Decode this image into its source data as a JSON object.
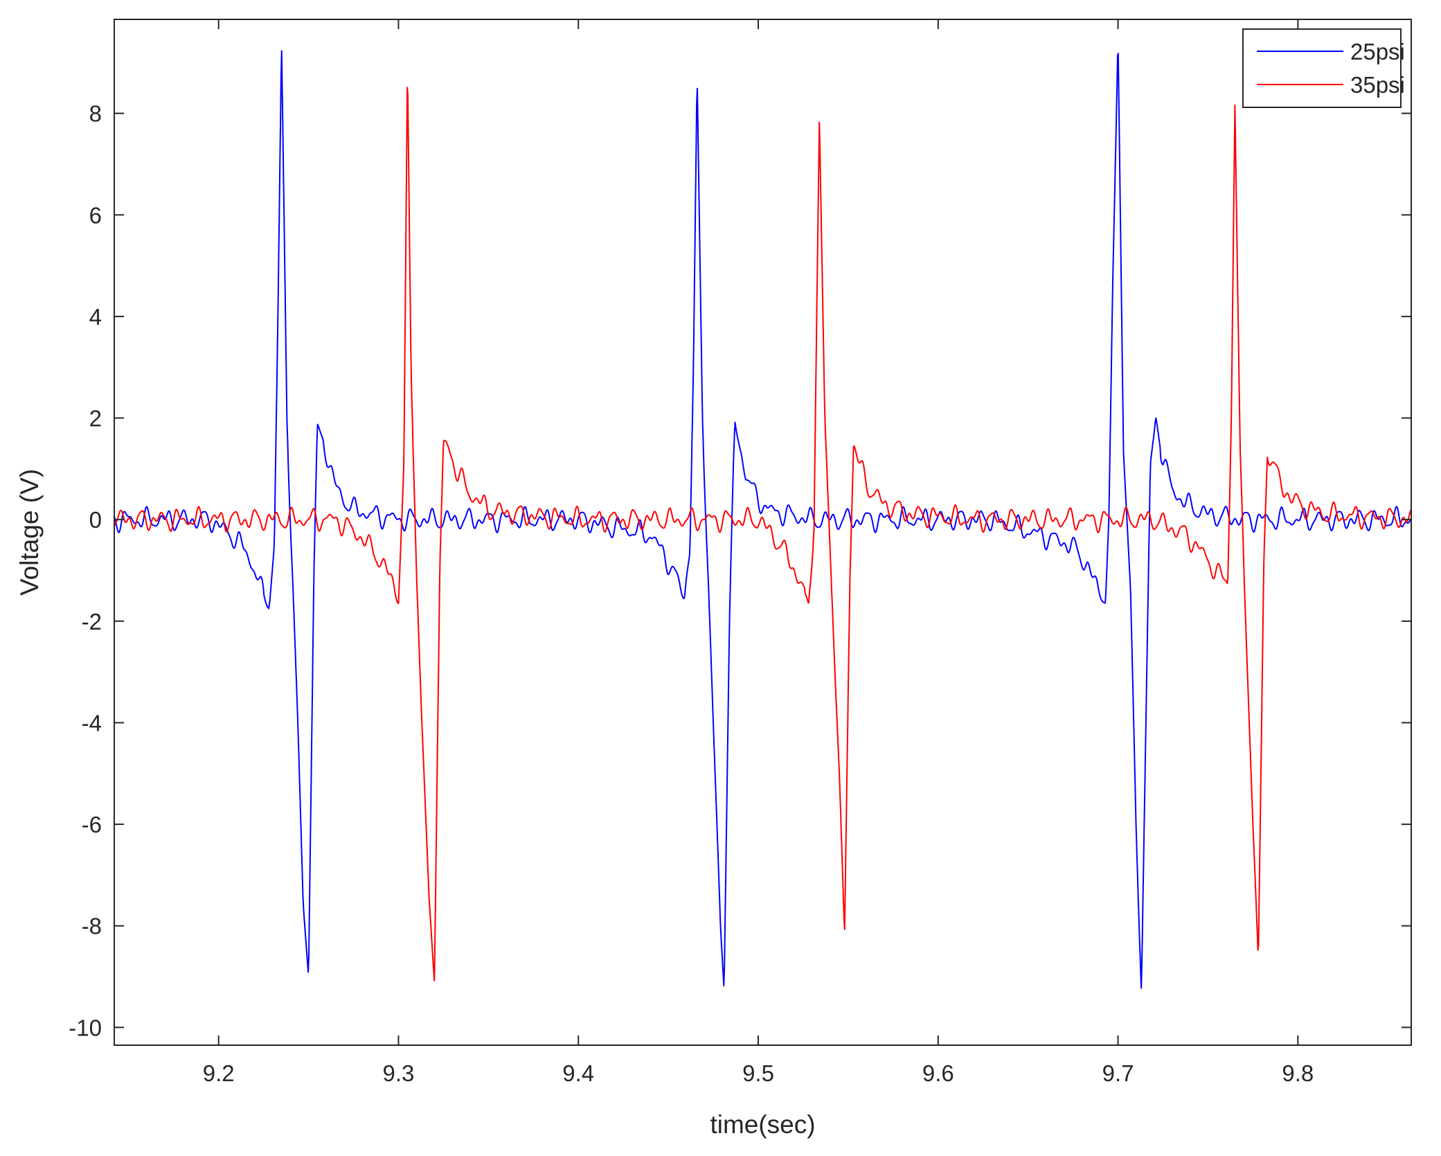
{
  "chart_data": {
    "type": "line",
    "title": "",
    "xlabel": "time(sec)",
    "ylabel": "Voltage (V)",
    "xlim": [
      9.142,
      9.863
    ],
    "ylim": [
      -10.35,
      9.85
    ],
    "xticks": [
      9.2,
      9.3,
      9.4,
      9.5,
      9.6,
      9.7,
      9.8
    ],
    "xtick_labels": [
      "9.2",
      "9.3",
      "9.4",
      "9.5",
      "9.6",
      "9.7",
      "9.8"
    ],
    "yticks": [
      -10,
      -8,
      -6,
      -4,
      -2,
      0,
      2,
      4,
      6,
      8
    ],
    "ytick_labels": [
      "-10",
      "-8",
      "-6",
      "-4",
      "-2",
      "0",
      "2",
      "4",
      "6",
      "8"
    ],
    "grid": false,
    "legend_position": "top-right",
    "series": [
      {
        "name": "25psi",
        "color": "#0000ff",
        "x": [
          9.142,
          9.195,
          9.207,
          9.215,
          9.22,
          9.225,
          9.228,
          9.231,
          9.233,
          9.235,
          9.238,
          9.241,
          9.244,
          9.247,
          9.25,
          9.253,
          9.255,
          9.258,
          9.262,
          9.267,
          9.275,
          9.285,
          9.3,
          9.35,
          9.4,
          9.44,
          9.448,
          9.455,
          9.459,
          9.462,
          9.464,
          9.466,
          9.469,
          9.472,
          9.476,
          9.479,
          9.481,
          9.484,
          9.487,
          9.49,
          9.493,
          9.498,
          9.505,
          9.515,
          9.53,
          9.58,
          9.63,
          9.674,
          9.683,
          9.689,
          9.693,
          9.695,
          9.697,
          9.7,
          9.703,
          9.707,
          9.71,
          9.713,
          9.716,
          9.718,
          9.721,
          9.725,
          9.73,
          9.738,
          9.75,
          9.77,
          9.82,
          9.863
        ],
        "y": [
          0.0,
          0.0,
          -0.3,
          -0.6,
          -1.0,
          -1.5,
          -1.7,
          -0.5,
          4.0,
          9.4,
          2.0,
          -1.0,
          -4.0,
          -7.5,
          -9.0,
          -1.0,
          1.8,
          1.6,
          1.0,
          0.5,
          0.2,
          0.1,
          0.0,
          0.0,
          0.0,
          -0.3,
          -0.7,
          -1.2,
          -1.5,
          -0.5,
          3.0,
          8.7,
          2.0,
          -1.0,
          -5.0,
          -8.0,
          -9.2,
          -2.0,
          1.9,
          1.4,
          0.9,
          0.5,
          0.2,
          0.1,
          0.0,
          0.0,
          0.0,
          -0.5,
          -0.9,
          -1.4,
          -1.5,
          0.0,
          4.5,
          9.5,
          1.5,
          -1.5,
          -6.0,
          -9.3,
          -3.0,
          1.0,
          2.0,
          1.2,
          0.6,
          0.3,
          0.1,
          0.0,
          0.0,
          0.0
        ]
      },
      {
        "name": "35psi",
        "color": "#ff0000",
        "x": [
          9.142,
          9.265,
          9.278,
          9.288,
          9.295,
          9.3,
          9.303,
          9.305,
          9.307,
          9.31,
          9.313,
          9.317,
          9.32,
          9.323,
          9.325,
          9.328,
          9.333,
          9.34,
          9.35,
          9.365,
          9.4,
          9.5,
          9.508,
          9.516,
          9.523,
          9.528,
          9.531,
          9.534,
          9.537,
          9.541,
          9.545,
          9.548,
          9.551,
          9.553,
          9.557,
          9.562,
          9.57,
          9.585,
          9.62,
          9.72,
          9.738,
          9.748,
          9.756,
          9.761,
          9.763,
          9.765,
          9.768,
          9.771,
          9.775,
          9.778,
          9.781,
          9.783,
          9.787,
          9.792,
          9.8,
          9.815,
          9.863
        ],
        "y": [
          0.0,
          0.0,
          -0.3,
          -0.7,
          -1.1,
          -1.5,
          1.0,
          8.9,
          3.0,
          -1.0,
          -4.0,
          -7.5,
          -9.0,
          -1.0,
          1.5,
          1.4,
          0.9,
          0.5,
          0.2,
          0.1,
          0.0,
          0.0,
          -0.3,
          -0.7,
          -1.2,
          -1.7,
          0.0,
          7.9,
          2.0,
          -1.5,
          -5.0,
          -8.2,
          -1.0,
          1.5,
          1.0,
          0.6,
          0.3,
          0.1,
          0.0,
          0.0,
          -0.3,
          -0.7,
          -1.1,
          -1.2,
          2.0,
          8.2,
          1.0,
          -2.0,
          -6.0,
          -8.7,
          -1.0,
          1.4,
          1.0,
          0.6,
          0.3,
          0.1,
          0.0
        ]
      }
    ]
  }
}
